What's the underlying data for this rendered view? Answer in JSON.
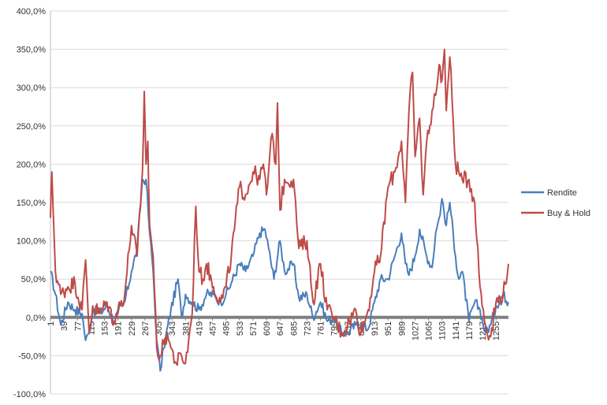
{
  "chart_data": {
    "type": "line",
    "title": "",
    "xlabel": "",
    "ylabel": "",
    "ylim": [
      -100,
      400
    ],
    "xlim": [
      1,
      1290
    ],
    "grid": true,
    "legend_position": "right",
    "y_ticks": [
      -100,
      -50,
      0,
      50,
      100,
      150,
      200,
      250,
      300,
      350,
      400
    ],
    "y_tick_labels": [
      "-100,0%",
      "-50,0%",
      "0,0%",
      "50,0%",
      "100,0%",
      "150,0%",
      "200,0%",
      "250,0%",
      "300,0%",
      "350,0%",
      "400,0%"
    ],
    "x_tick_labels": [
      "1",
      "39",
      "77",
      "115",
      "153",
      "191",
      "229",
      "267",
      "305",
      "343",
      "381",
      "419",
      "457",
      "495",
      "533",
      "571",
      "609",
      "647",
      "685",
      "723",
      "761",
      "799",
      "837",
      "875",
      "913",
      "951",
      "989",
      "1027",
      "1065",
      "1103",
      "1141",
      "1179",
      "1217",
      "1255"
    ],
    "series": [
      {
        "name": "Rendite",
        "color": "#4a7ebb",
        "x": [
          1,
          15,
          30,
          50,
          70,
          90,
          100,
          110,
          120,
          140,
          160,
          180,
          191,
          210,
          229,
          245,
          260,
          270,
          280,
          290,
          300,
          310,
          320,
          340,
          360,
          370,
          381,
          400,
          419,
          440,
          460,
          480,
          495,
          510,
          533,
          550,
          571,
          590,
          605,
          615,
          630,
          647,
          660,
          685,
          700,
          723,
          740,
          761,
          780,
          799,
          820,
          837,
          860,
          875,
          895,
          913,
          930,
          951,
          970,
          989,
          1000,
          1010,
          1027,
          1040,
          1060,
          1075,
          1085,
          1095,
          1103,
          1115,
          1125,
          1141,
          1150,
          1160,
          1179,
          1195,
          1210,
          1225,
          1240,
          1255,
          1275,
          1290
        ],
        "values": [
          60,
          30,
          -10,
          20,
          10,
          5,
          -30,
          -20,
          10,
          5,
          15,
          -5,
          5,
          20,
          60,
          90,
          180,
          180,
          110,
          60,
          -30,
          -70,
          -40,
          10,
          50,
          0,
          30,
          20,
          10,
          30,
          30,
          20,
          30,
          45,
          70,
          60,
          80,
          110,
          115,
          90,
          50,
          100,
          60,
          70,
          25,
          30,
          0,
          20,
          -5,
          0,
          -20,
          -20,
          -10,
          -10,
          -15,
          20,
          50,
          50,
          80,
          110,
          70,
          55,
          80,
          115,
          80,
          65,
          110,
          130,
          155,
          120,
          150,
          80,
          50,
          60,
          -5,
          20,
          10,
          -20,
          -10,
          15,
          30,
          20
        ]
      },
      {
        "name": "Buy & Hold",
        "color": "#be4b48",
        "x": [
          1,
          5,
          15,
          30,
          50,
          70,
          90,
          100,
          110,
          120,
          140,
          160,
          180,
          191,
          210,
          229,
          245,
          255,
          260,
          265,
          270,
          275,
          280,
          290,
          300,
          310,
          320,
          330,
          340,
          355,
          370,
          381,
          390,
          400,
          410,
          419,
          430,
          440,
          460,
          480,
          495,
          510,
          533,
          550,
          571,
          590,
          600,
          609,
          625,
          635,
          640,
          647,
          660,
          685,
          700,
          723,
          740,
          761,
          780,
          799,
          820,
          837,
          860,
          875,
          895,
          913,
          930,
          951,
          970,
          989,
          1000,
          1010,
          1020,
          1027,
          1040,
          1050,
          1060,
          1075,
          1085,
          1095,
          1103,
          1110,
          1115,
          1125,
          1141,
          1150,
          1160,
          1179,
          1195,
          1210,
          1225,
          1240,
          1255,
          1275,
          1290
        ],
        "values": [
          130,
          190,
          60,
          30,
          40,
          45,
          10,
          75,
          -20,
          15,
          5,
          20,
          -5,
          10,
          30,
          120,
          80,
          150,
          190,
          295,
          200,
          230,
          120,
          80,
          -40,
          -50,
          -35,
          -20,
          -40,
          -60,
          -50,
          -60,
          -30,
          5,
          145,
          60,
          50,
          70,
          40,
          20,
          40,
          80,
          170,
          160,
          190,
          180,
          200,
          160,
          240,
          200,
          280,
          140,
          180,
          180,
          90,
          100,
          20,
          70,
          10,
          0,
          -20,
          -10,
          10,
          -20,
          10,
          60,
          80,
          170,
          190,
          230,
          150,
          270,
          320,
          210,
          260,
          160,
          230,
          270,
          290,
          330,
          310,
          350,
          270,
          340,
          200,
          190,
          180,
          180,
          150,
          40,
          -10,
          -25,
          20,
          30,
          70
        ]
      }
    ]
  }
}
